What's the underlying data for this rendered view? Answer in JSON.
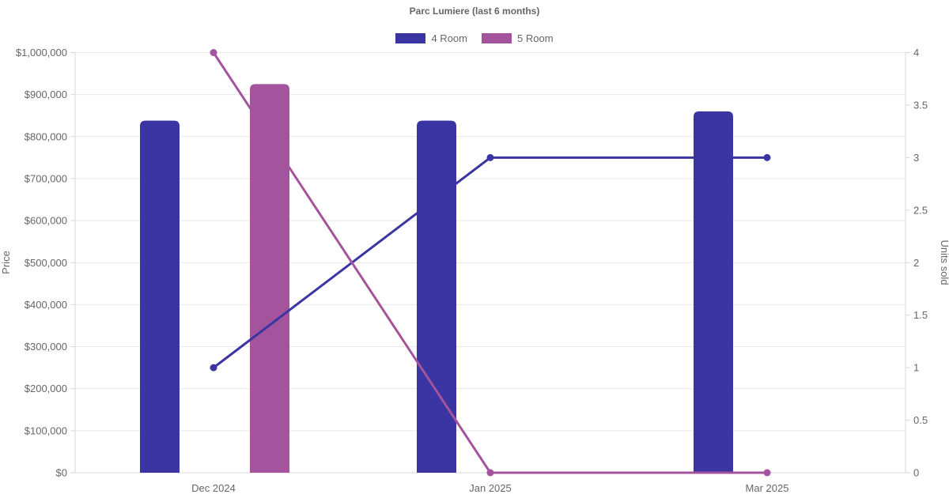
{
  "chart_data": {
    "type": "combo-bar-line",
    "title": "Parc Lumiere (last 6 months)",
    "categories": [
      "Dec 2024",
      "Jan 2025",
      "Mar 2025"
    ],
    "series": [
      {
        "name": "4 Room",
        "color": "#3a35a2",
        "price_bars": [
          838000,
          838000,
          860000
        ],
        "units_sold_line": [
          1,
          3,
          3
        ]
      },
      {
        "name": "5 Room",
        "color": "#a3549c",
        "price_bars": [
          925000,
          null,
          null
        ],
        "units_sold_line": [
          4,
          0,
          0
        ]
      }
    ],
    "left_axis": {
      "label": "Price",
      "min": 0,
      "max": 1000000,
      "step": 100000,
      "tick_format": "usd"
    },
    "right_axis": {
      "label": "Units sold",
      "min": 0,
      "max": 4,
      "step": 0.5
    },
    "legend_position": "top",
    "grid": "horizontal",
    "colors": {
      "grid": "#e9e9e9",
      "axis": "#d9d9d9",
      "text": "#666666",
      "background": "#ffffff"
    }
  }
}
